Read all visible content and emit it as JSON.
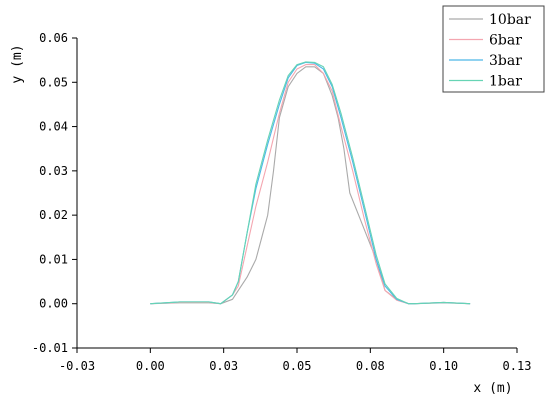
{
  "chart_data": {
    "type": "line",
    "xlabel": "x (m)",
    "ylabel": "y (m)",
    "xlim": [
      -0.025,
      0.125
    ],
    "ylim": [
      -0.01,
      0.06
    ],
    "x_ticks": [
      -0.025,
      0.0,
      0.025,
      0.05,
      0.075,
      0.1,
      0.125
    ],
    "x_tick_labels": [
      "-0.03",
      "0.00",
      "0.03",
      "0.05",
      "0.08",
      "0.10",
      "0.13"
    ],
    "y_ticks": [
      -0.01,
      0.0,
      0.01,
      0.02,
      0.03,
      0.04,
      0.05,
      0.06
    ],
    "y_tick_labels": [
      "-0.01",
      "0.00",
      "0.01",
      "0.02",
      "0.03",
      "0.04",
      "0.05",
      "0.06"
    ],
    "grid": false,
    "legend_position": "top-right",
    "series": [
      {
        "name": "10bar",
        "color": "#aaaaaa",
        "x": [
          0.0,
          0.01,
          0.02,
          0.024,
          0.028,
          0.03,
          0.033,
          0.036,
          0.038,
          0.04,
          0.042,
          0.044,
          0.047,
          0.05,
          0.053,
          0.056,
          0.059,
          0.062,
          0.064,
          0.066,
          0.068,
          0.071,
          0.074,
          0.077,
          0.08,
          0.084,
          0.088,
          0.09,
          0.1,
          0.109
        ],
        "y": [
          0.0,
          0.0002,
          0.0002,
          0.0,
          0.001,
          0.003,
          0.006,
          0.01,
          0.015,
          0.02,
          0.03,
          0.042,
          0.049,
          0.052,
          0.0535,
          0.0535,
          0.052,
          0.047,
          0.042,
          0.035,
          0.025,
          0.02,
          0.015,
          0.01,
          0.003,
          0.001,
          0.0,
          0.0,
          0.0002,
          0.0
        ]
      },
      {
        "name": "6bar",
        "color": "#f4a6b0",
        "x": [
          0.0,
          0.01,
          0.02,
          0.024,
          0.028,
          0.03,
          0.033,
          0.036,
          0.04,
          0.044,
          0.047,
          0.05,
          0.053,
          0.056,
          0.059,
          0.062,
          0.065,
          0.069,
          0.073,
          0.077,
          0.08,
          0.084,
          0.088,
          0.09,
          0.1,
          0.109
        ],
        "y": [
          0.0,
          0.0003,
          0.0003,
          0.0,
          0.002,
          0.004,
          0.013,
          0.022,
          0.032,
          0.043,
          0.05,
          0.053,
          0.054,
          0.054,
          0.052,
          0.048,
          0.04,
          0.03,
          0.019,
          0.009,
          0.003,
          0.0008,
          0.0,
          0.0,
          0.0003,
          0.0
        ]
      },
      {
        "name": "3bar",
        "color": "#4db8e8",
        "x": [
          0.0,
          0.01,
          0.02,
          0.024,
          0.028,
          0.03,
          0.033,
          0.036,
          0.04,
          0.044,
          0.047,
          0.05,
          0.053,
          0.056,
          0.059,
          0.062,
          0.065,
          0.069,
          0.073,
          0.077,
          0.08,
          0.084,
          0.088,
          0.09,
          0.1,
          0.109
        ],
        "y": [
          0.0,
          0.0004,
          0.0004,
          0.0,
          0.002,
          0.005,
          0.016,
          0.026,
          0.036,
          0.045,
          0.051,
          0.0538,
          0.0545,
          0.0543,
          0.053,
          0.049,
          0.042,
          0.032,
          0.021,
          0.01,
          0.004,
          0.001,
          0.0,
          0.0,
          0.0003,
          0.0
        ]
      },
      {
        "name": "1bar",
        "color": "#66d4b4",
        "x": [
          0.0,
          0.01,
          0.02,
          0.024,
          0.028,
          0.03,
          0.033,
          0.036,
          0.04,
          0.044,
          0.047,
          0.05,
          0.053,
          0.056,
          0.059,
          0.062,
          0.065,
          0.069,
          0.073,
          0.077,
          0.08,
          0.084,
          0.088,
          0.09,
          0.1,
          0.109
        ],
        "y": [
          0.0,
          0.0004,
          0.0004,
          0.0,
          0.002,
          0.005,
          0.016,
          0.027,
          0.037,
          0.046,
          0.0515,
          0.054,
          0.0546,
          0.0545,
          0.0535,
          0.0495,
          0.043,
          0.033,
          0.022,
          0.011,
          0.0045,
          0.0012,
          0.0,
          0.0,
          0.0003,
          0.0
        ]
      }
    ]
  }
}
